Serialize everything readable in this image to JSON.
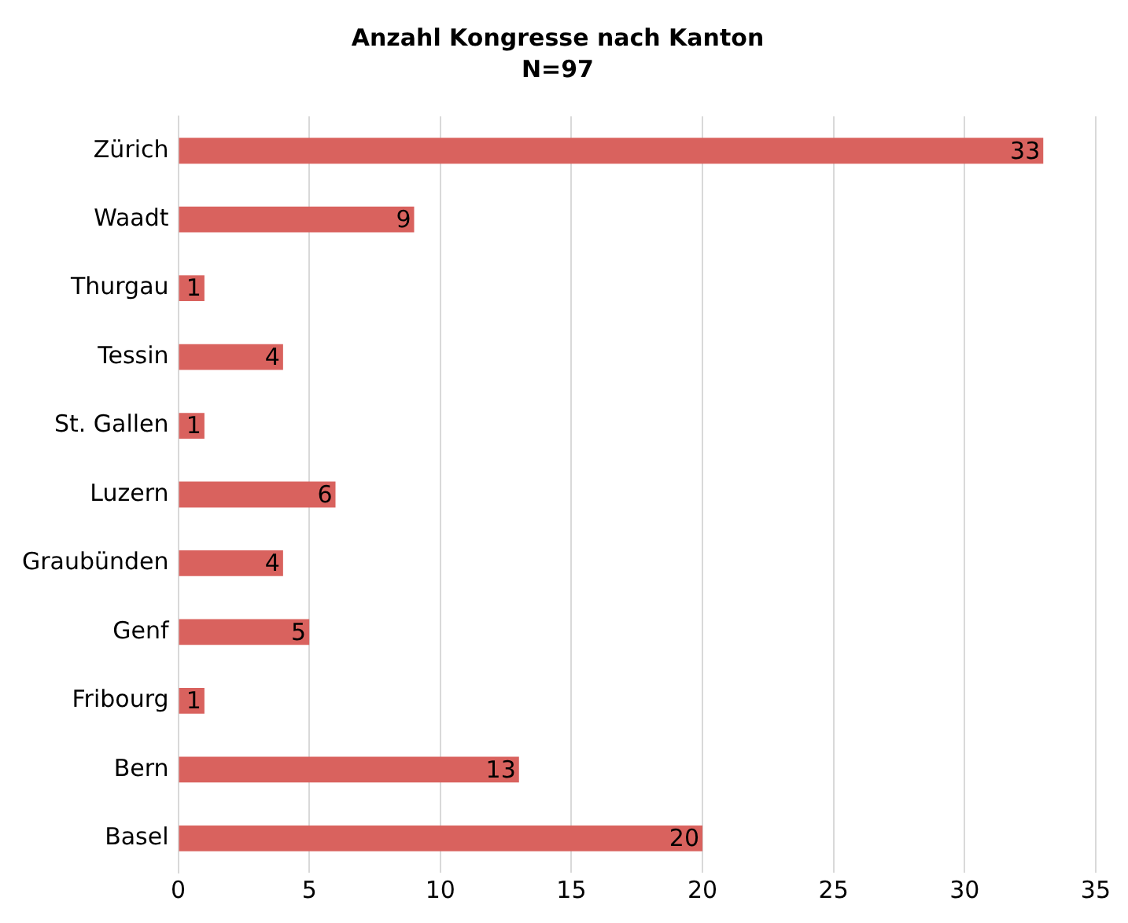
{
  "chart_data": {
    "type": "bar",
    "orientation": "horizontal",
    "title": "Anzahl Kongresse nach Kanton",
    "subtitle": "N=97",
    "categories": [
      "Zürich",
      "Waadt",
      "Thurgau",
      "Tessin",
      "St. Gallen",
      "Luzern",
      "Graubünden",
      "Genf",
      "Fribourg",
      "Bern",
      "Basel"
    ],
    "values": [
      33,
      9,
      1,
      4,
      1,
      6,
      4,
      5,
      1,
      13,
      20
    ],
    "color": "#d9625e",
    "xlim": [
      0,
      35
    ],
    "xticks": [
      0,
      5,
      10,
      15,
      20,
      25,
      30,
      35
    ],
    "grid": "x",
    "data_labels": true,
    "legend": false
  }
}
